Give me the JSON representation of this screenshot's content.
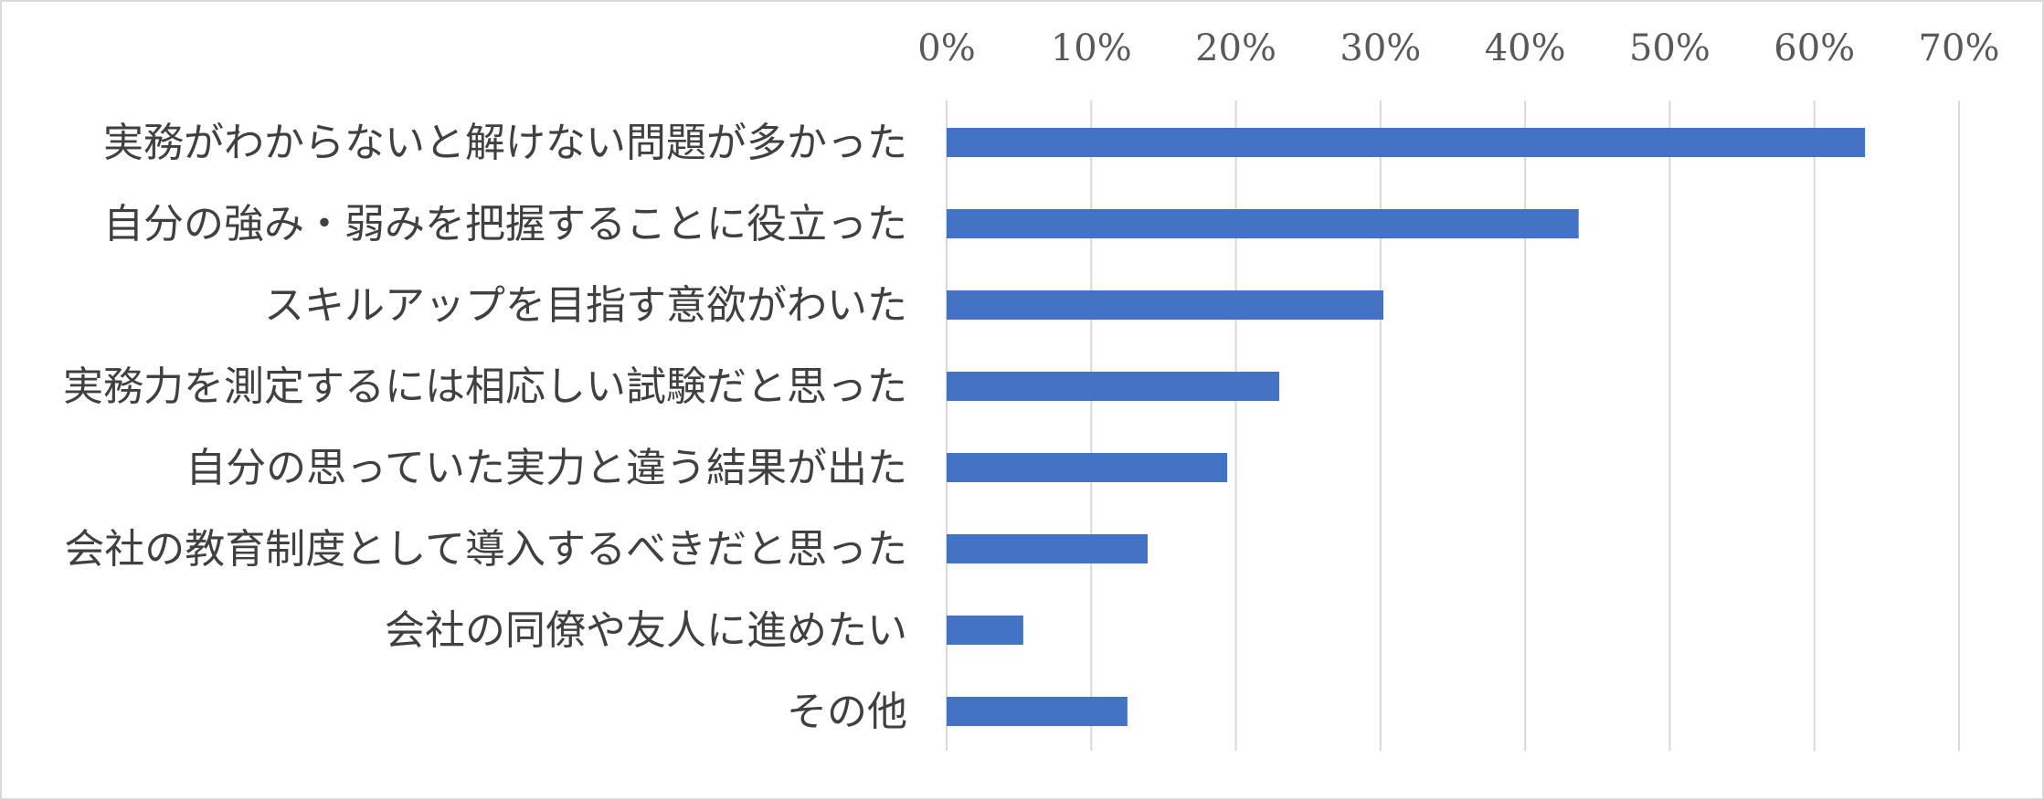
{
  "chart_data": {
    "type": "bar",
    "orientation": "horizontal",
    "categories": [
      "実務がわからないと解けない問題が多かった",
      "自分の強み・弱みを把握することに役立った",
      "スキルアップを目指す意欲がわいた",
      "実務力を測定するには相応しい試験だと思った",
      "自分の思っていた実力と違う結果が出た",
      "会社の教育制度として導入するべきだと思った",
      "会社の同僚や友人に進めたい",
      "その他"
    ],
    "values": [
      63.5,
      43.7,
      30.2,
      23.0,
      19.4,
      13.9,
      5.3,
      12.5
    ],
    "xlim": [
      0,
      70
    ],
    "xticks": [
      0,
      10,
      20,
      30,
      40,
      50,
      60,
      70
    ],
    "xtick_labels": [
      "0%",
      "10%",
      "20%",
      "30%",
      "40%",
      "50%",
      "60%",
      "70%"
    ],
    "axis_position": "top",
    "grid": true,
    "legend": false,
    "bar_color": "#4472c4",
    "grid_color": "#d9d9d9"
  }
}
